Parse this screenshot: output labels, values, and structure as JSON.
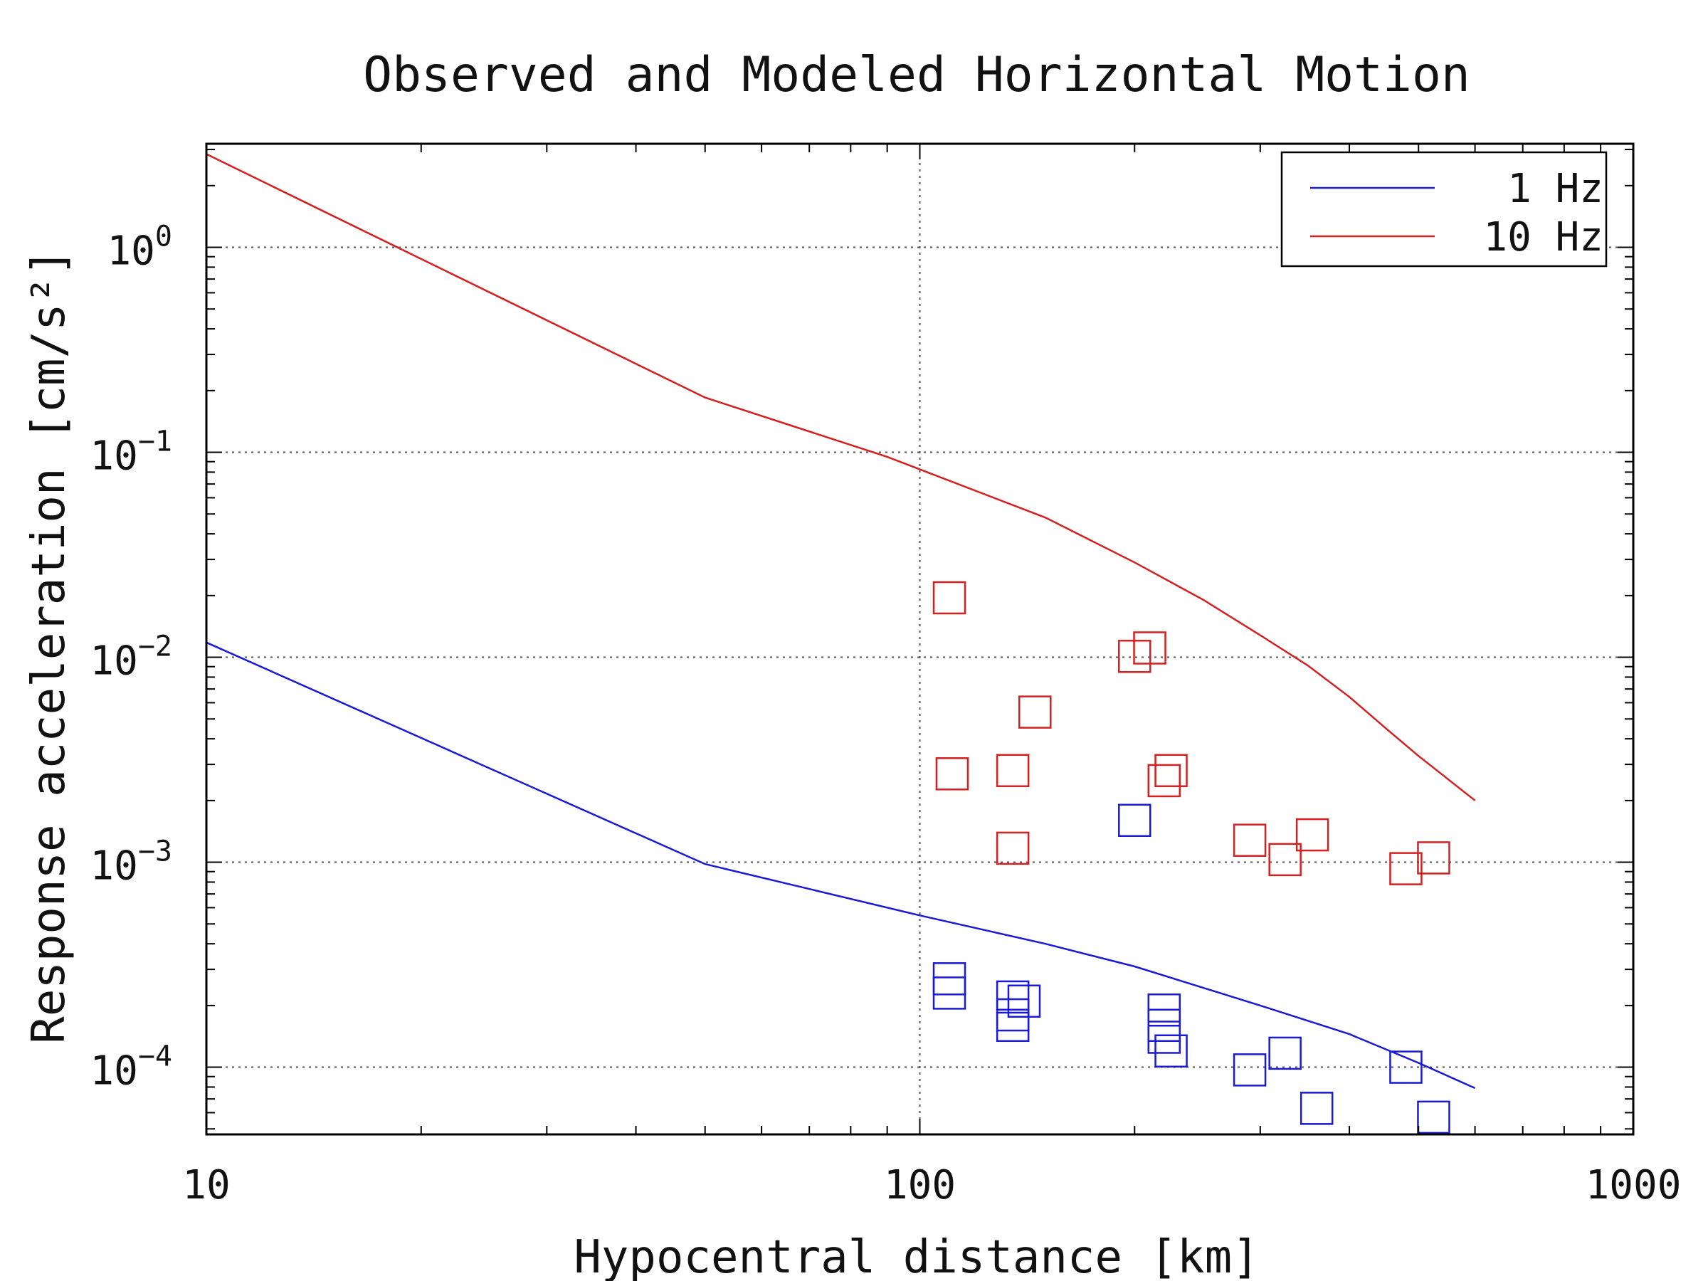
{
  "chart_data": {
    "type": "scatter",
    "title": "Observed and Modeled Horizontal Motion",
    "xlabel": "Hypocentral distance [km]",
    "ylabel": "Response acceleration [cm/s²]",
    "xscale": "log",
    "yscale": "log",
    "xlim": [
      10,
      1000
    ],
    "ylim": [
      4.7e-05,
      3.2
    ],
    "x_tick_labels": [
      {
        "value": 10,
        "label": "10"
      },
      {
        "value": 100,
        "label": "100"
      },
      {
        "value": 1000,
        "label": "1000"
      }
    ],
    "y_tick_labels": [
      {
        "value": 1,
        "base": "10",
        "exp": "0"
      },
      {
        "value": 0.1,
        "base": "10",
        "exp": "−1"
      },
      {
        "value": 0.01,
        "base": "10",
        "exp": "−2"
      },
      {
        "value": 0.001,
        "base": "10",
        "exp": "−3"
      },
      {
        "value": 0.0001,
        "base": "10",
        "exp": "−4"
      }
    ],
    "grid": true,
    "legend_position": "top-right",
    "series": [
      {
        "name": "1 Hz",
        "kind": "line",
        "color": "#1a1ad6",
        "x": [
          10,
          50,
          100,
          150,
          200,
          300,
          400,
          500,
          600
        ],
        "y": [
          0.0118,
          0.00098,
          0.00055,
          0.0004,
          0.00031,
          0.0002,
          0.000145,
          0.000105,
          7.9e-05
        ]
      },
      {
        "name": "10 Hz",
        "kind": "line",
        "color": "#d42020",
        "x": [
          10,
          50,
          90,
          150,
          200,
          250,
          300,
          350,
          400,
          450,
          500,
          600
        ],
        "y": [
          2.85,
          0.185,
          0.095,
          0.048,
          0.029,
          0.019,
          0.0128,
          0.0091,
          0.0064,
          0.0045,
          0.0033,
          0.002
        ]
      },
      {
        "kind": "markers",
        "marker": "square",
        "color": "#1a1ad6",
        "x": [
          110,
          110,
          135,
          135,
          135,
          140,
          200,
          220,
          220,
          220,
          225,
          290,
          325,
          360,
          480,
          525
        ],
        "y": [
          0.00027,
          0.00023,
          0.00022,
          0.00018,
          0.00016,
          0.00021,
          0.0016,
          0.00019,
          0.00016,
          0.00014,
          0.00012,
          9.7e-05,
          0.000117,
          6.3e-05,
          0.0001,
          5.7e-05
        ]
      },
      {
        "kind": "markers",
        "marker": "square",
        "color": "#d42020",
        "x": [
          110,
          111,
          135,
          135,
          145,
          200,
          210,
          220,
          225,
          290,
          325,
          355,
          480,
          525
        ],
        "y": [
          0.0195,
          0.0027,
          0.0028,
          0.00117,
          0.0054,
          0.0101,
          0.0111,
          0.0025,
          0.0028,
          0.00128,
          0.00103,
          0.00136,
          0.00093,
          0.00105
        ]
      }
    ]
  }
}
